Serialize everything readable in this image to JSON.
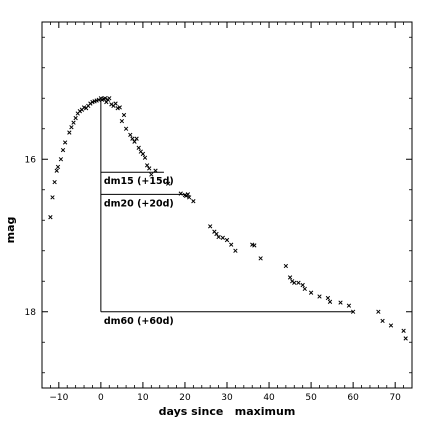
{
  "chart_data": {
    "type": "scatter",
    "title": "",
    "xlabel": "days since   maximum",
    "ylabel": "mag",
    "xlim": [
      -14,
      74
    ],
    "ylim": [
      19.0,
      14.2
    ],
    "y_inverted": true,
    "x_ticks": [
      -10,
      0,
      10,
      20,
      30,
      40,
      50,
      60,
      70
    ],
    "x_tick_labels": [
      "−10",
      "0",
      "10",
      "20",
      "30",
      "40",
      "50",
      "60",
      "70"
    ],
    "y_ticks": [
      16,
      18
    ],
    "y_tick_labels": [
      "16",
      "18"
    ],
    "grid": false,
    "marker": "x",
    "series": [
      {
        "name": "",
        "x": [
          -12,
          -11.5,
          -11,
          -10.5,
          -10.2,
          -9.5,
          -9,
          -8.5,
          -7.5,
          -7,
          -6.5,
          -6,
          -5.5,
          -5,
          -4.5,
          -4,
          -3.5,
          -3,
          -2.5,
          -2,
          -1.5,
          -1,
          -0.5,
          0,
          0.3,
          0.7,
          1,
          1.3,
          1.7,
          2,
          2.5,
          3,
          3.5,
          4,
          4.5,
          5,
          5.5,
          6,
          7,
          7.5,
          8,
          8.5,
          9,
          9.5,
          10,
          10.5,
          11,
          11.5,
          12,
          13,
          16,
          19,
          20,
          20.3,
          20.7,
          21,
          22,
          26,
          27,
          27.5,
          28,
          29,
          30,
          31,
          32,
          36,
          36.5,
          38,
          44,
          45,
          45.5,
          46,
          47,
          48,
          48.5,
          50,
          52,
          54,
          54.5,
          57,
          59,
          60,
          66,
          67,
          69,
          72,
          72.5
        ],
        "y": [
          16.76,
          16.5,
          16.3,
          16.15,
          16.1,
          16.0,
          15.88,
          15.78,
          15.65,
          15.58,
          15.52,
          15.46,
          15.4,
          15.37,
          15.35,
          15.32,
          15.33,
          15.3,
          15.27,
          15.25,
          15.24,
          15.23,
          15.22,
          15.2,
          15.22,
          15.21,
          15.2,
          15.25,
          15.22,
          15.2,
          15.28,
          15.3,
          15.27,
          15.33,
          15.32,
          15.5,
          15.42,
          15.6,
          15.68,
          15.73,
          15.77,
          15.73,
          15.85,
          15.9,
          15.93,
          15.98,
          16.08,
          16.12,
          16.2,
          16.15,
          16.32,
          16.45,
          16.47,
          16.48,
          16.46,
          16.5,
          16.55,
          16.88,
          16.95,
          16.98,
          17.02,
          17.03,
          17.06,
          17.12,
          17.2,
          17.12,
          17.13,
          17.3,
          17.4,
          17.55,
          17.6,
          17.62,
          17.62,
          17.65,
          17.7,
          17.75,
          17.8,
          17.82,
          17.87,
          17.88,
          17.92,
          18.0,
          18.0,
          18.12,
          18.18,
          18.25,
          18.35
        ],
        "color": "#000000"
      }
    ],
    "annotations": [
      {
        "label": "dm15 (+15d)",
        "x_start": 0,
        "x_end": 15,
        "y": 16.17
      },
      {
        "label": "dm20 (+20d)",
        "x_start": 0,
        "x_end": 20,
        "y": 16.46
      },
      {
        "label": "dm60 (+60d)",
        "x_start": 0,
        "x_end": 60,
        "y": 18.0
      }
    ],
    "annotation_vertical": {
      "x": 0,
      "y_top": 15.2,
      "y_bottom": 18.0
    }
  }
}
